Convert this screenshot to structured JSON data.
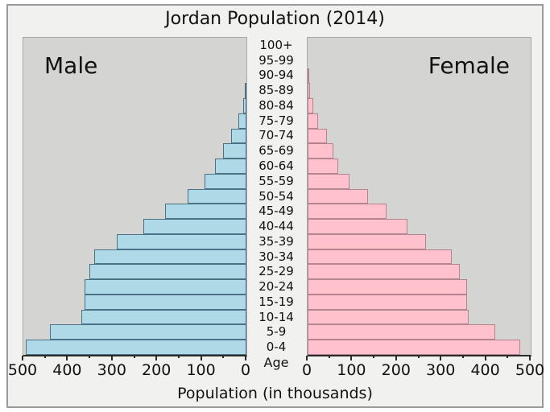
{
  "title": "Jordan Population (2014)",
  "xlabel": "Population (in thousands)",
  "male_label": "Male",
  "female_label": "Female",
  "age_label": "Age",
  "colors": {
    "page_bg": "#ffffff",
    "frame_bg": "#f1f1ef",
    "frame_border": "#9a9a9a",
    "plot_bg": "#d4d4d3",
    "male_fill": "#aed9e6",
    "male_edge": "#4c7086",
    "female_fill": "#ffc1cc",
    "female_edge": "#b5838f",
    "axis_line": "#2b2b2b",
    "text": "#111111"
  },
  "chart_data": {
    "type": "bar",
    "subtype": "population-pyramid",
    "title": "Jordan Population (2014)",
    "xlabel": "Population (in thousands)",
    "center_axis_label": "Age",
    "unit": "thousands of people",
    "xlim": [
      0,
      500
    ],
    "x_major_tick_step": 100,
    "x_minor_tick_step": 50,
    "male_axis_ticks": [
      "500",
      "400",
      "300",
      "200",
      "100",
      "0"
    ],
    "female_axis_ticks": [
      "0",
      "100",
      "200",
      "300",
      "400",
      "500"
    ],
    "categories": [
      "100+",
      "95-99",
      "90-94",
      "85-89",
      "80-84",
      "75-79",
      "70-74",
      "65-69",
      "60-64",
      "55-59",
      "50-54",
      "45-49",
      "40-44",
      "35-39",
      "30-34",
      "25-29",
      "20-24",
      "15-19",
      "10-14",
      "5-9",
      "0-4"
    ],
    "series": [
      {
        "name": "Male",
        "side": "left",
        "color": "#aed9e6",
        "values": [
          0,
          0,
          1,
          3,
          7,
          18,
          34,
          53,
          70,
          93,
          132,
          182,
          231,
          290,
          341,
          352,
          363,
          363,
          370,
          440,
          495
        ]
      },
      {
        "name": "Female",
        "side": "right",
        "color": "#ffc1cc",
        "values": [
          0,
          1,
          3,
          6,
          12,
          23,
          43,
          58,
          69,
          93,
          135,
          177,
          224,
          266,
          323,
          341,
          357,
          357,
          361,
          420,
          477
        ]
      }
    ],
    "legend": "none",
    "grid": false
  }
}
